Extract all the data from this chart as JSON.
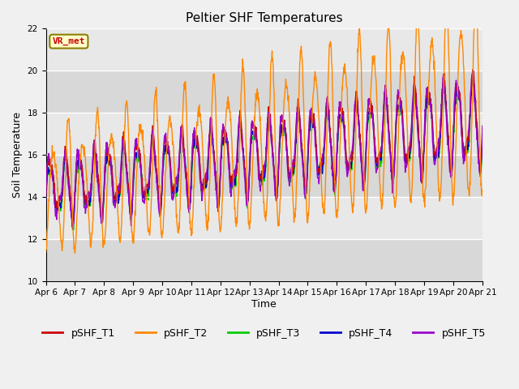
{
  "title": "Peltier SHF Temperatures",
  "xlabel": "Time",
  "ylabel": "Soil Temperature",
  "ylim": [
    10,
    22
  ],
  "yticks": [
    10,
    12,
    14,
    16,
    18,
    20,
    22
  ],
  "xtick_labels": [
    "Apr 6",
    "Apr 7",
    "Apr 8",
    "Apr 9",
    "Apr 10",
    "Apr 11",
    "Apr 12",
    "Apr 13",
    "Apr 14",
    "Apr 15",
    "Apr 16",
    "Apr 17",
    "Apr 18",
    "Apr 19",
    "Apr 20",
    "Apr 21"
  ],
  "colors": {
    "T1": "#cc0000",
    "T2": "#ff8800",
    "T3": "#00cc00",
    "T4": "#0000cc",
    "T5": "#9900cc"
  },
  "legend_labels": [
    "pSHF_T1",
    "pSHF_T2",
    "pSHF_T3",
    "pSHF_T4",
    "pSHF_T5"
  ],
  "annotation_text": "VR_met",
  "annotation_color": "#cc0000",
  "bg_color": "#e8e8e8",
  "linewidth": 1.0,
  "n_points": 1500,
  "n_days": 15,
  "band_colors": [
    "#d8d8d8",
    "#e8e8e8"
  ]
}
